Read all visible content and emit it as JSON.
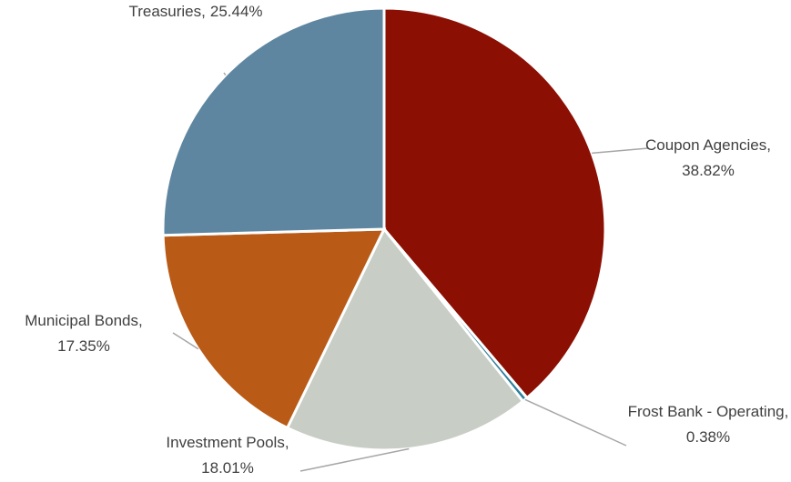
{
  "chart_data": {
    "type": "pie",
    "categories": [
      "Coupon Agencies",
      "Frost Bank - Operating",
      "Investment Pools",
      "Municipal Bonds",
      "Treasuries"
    ],
    "values": [
      38.82,
      0.38,
      18.01,
      17.35,
      25.44
    ],
    "value_labels": [
      "38.82%",
      "0.38%",
      "18.01%",
      "17.35%",
      "25.44%"
    ],
    "colors": [
      "#8b0f03",
      "#2f7f9c",
      "#c8cec5",
      "#b95a16",
      "#5e86a0"
    ]
  }
}
